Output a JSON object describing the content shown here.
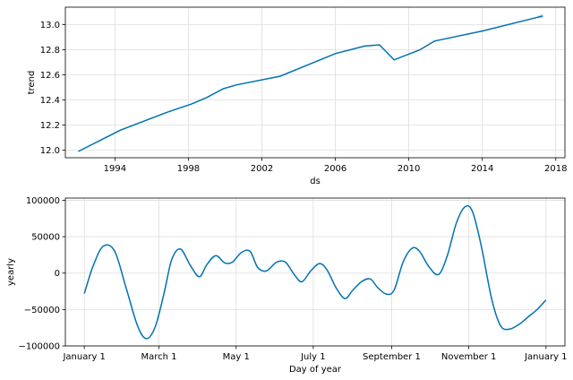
{
  "chart_data": [
    {
      "type": "line",
      "xlabel": "ds",
      "ylabel": "trend",
      "xlim": [
        1991.3,
        2018.5
      ],
      "ylim": [
        11.94,
        13.14
      ],
      "x_ticks": [
        1994,
        1998,
        2002,
        2006,
        2010,
        2014,
        2018
      ],
      "y_ticks": [
        12.0,
        12.2,
        12.4,
        12.6,
        12.8,
        13.0
      ],
      "y_tick_labels": [
        "12.0",
        "12.2",
        "12.4",
        "12.6",
        "12.8",
        "13.0"
      ],
      "grid": true,
      "line_color": "#0072B2",
      "band_color": "#0072B2",
      "series": [
        {
          "x": [
            1992.0,
            1994.3,
            1996.8,
            1998.2,
            1999.0,
            1999.9,
            2000.6,
            2003.0,
            2006.0,
            2007.6,
            2008.4,
            2009.2,
            2010.6,
            2011.4,
            2014.0,
            2017.3
          ],
          "values": [
            11.99,
            12.16,
            12.3,
            12.37,
            12.42,
            12.49,
            12.52,
            12.59,
            12.77,
            12.83,
            12.84,
            12.72,
            12.8,
            12.87,
            12.95,
            13.07
          ],
          "band": [
            {
              "x": 2017.0,
              "lo": 13.05,
              "hi": 13.07
            },
            {
              "x": 2017.3,
              "lo": 13.05,
              "hi": 13.09
            }
          ]
        }
      ]
    },
    {
      "type": "line",
      "xlabel": "Day of year",
      "ylabel": "yearly",
      "xlim": [
        -15,
        380
      ],
      "ylim": [
        -100000,
        103000
      ],
      "x_ticks": [
        0,
        59,
        120,
        181,
        243,
        304,
        365
      ],
      "x_tick_labels": [
        "January 1",
        "March 1",
        "May 1",
        "July 1",
        "September 1",
        "November 1",
        "January 1"
      ],
      "y_ticks": [
        -100000,
        -50000,
        0,
        50000,
        100000
      ],
      "y_tick_labels": [
        "−100000",
        "−50000",
        "0",
        "50000",
        "100000"
      ],
      "grid": true,
      "line_color": "#0072B2",
      "series": [
        {
          "x": [
            0,
            7,
            15,
            24,
            33,
            42,
            49,
            56,
            63,
            69,
            76,
            84,
            91,
            97,
            104,
            111,
            117,
            124,
            131,
            137,
            144,
            152,
            159,
            166,
            172,
            179,
            186,
            192,
            199,
            206,
            212,
            219,
            226,
            232,
            239,
            245,
            252,
            259,
            265,
            272,
            280,
            287,
            294,
            301,
            307,
            314,
            322,
            329,
            336,
            344,
            351,
            358,
            365
          ],
          "values": [
            -28000,
            10000,
            37000,
            30000,
            -20000,
            -72000,
            -90000,
            -74000,
            -28000,
            18000,
            33000,
            10000,
            -5000,
            12000,
            24000,
            14000,
            15000,
            28000,
            30000,
            8000,
            3000,
            15000,
            15000,
            -2000,
            -12000,
            3000,
            13000,
            4000,
            -20000,
            -35000,
            -24000,
            -12000,
            -8000,
            -20000,
            -29000,
            -23000,
            15000,
            34000,
            30000,
            10000,
            -2000,
            24000,
            68000,
            91000,
            84000,
            36000,
            -35000,
            -72000,
            -77000,
            -70000,
            -60000,
            -50000,
            -37000
          ]
        }
      ]
    }
  ]
}
